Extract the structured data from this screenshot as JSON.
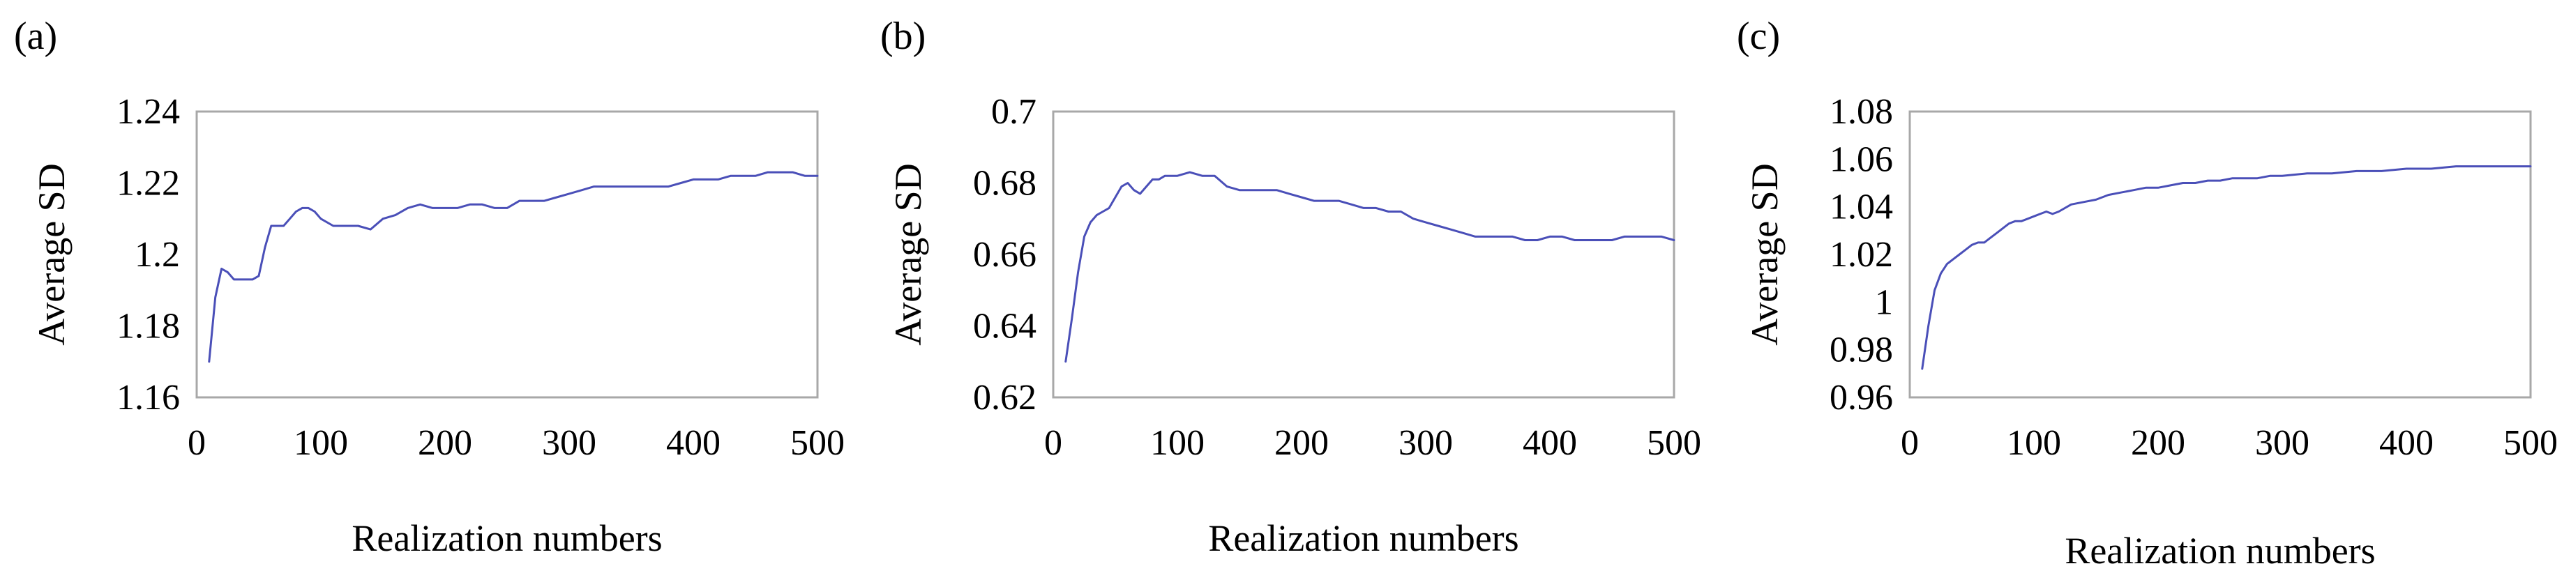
{
  "colors": {
    "line": "#4a4fb8",
    "axis": "#a8a8a8",
    "background": "#ffffff",
    "text": "#000000"
  },
  "chart_data": [
    {
      "panel_label": "(a)",
      "type": "line",
      "xlabel": "Realization numbers",
      "ylabel": "Average SD",
      "xlim": [
        0,
        500
      ],
      "ylim": [
        1.16,
        1.24
      ],
      "xticks": [
        "0",
        "100",
        "200",
        "300",
        "400",
        "500"
      ],
      "yticks": [
        "1.16",
        "1.18",
        "1.2",
        "1.22",
        "1.24"
      ],
      "grid": false,
      "legend": "none",
      "series": [
        {
          "x": [
            10,
            15,
            20,
            25,
            30,
            35,
            40,
            45,
            50,
            55,
            60,
            65,
            70,
            75,
            80,
            85,
            90,
            95,
            100,
            110,
            120,
            130,
            140,
            150,
            160,
            170,
            180,
            190,
            200,
            210,
            220,
            230,
            240,
            250,
            260,
            270,
            280,
            290,
            300,
            310,
            320,
            330,
            340,
            350,
            360,
            370,
            380,
            390,
            400,
            410,
            420,
            430,
            440,
            450,
            460,
            470,
            480,
            490,
            500
          ],
          "y": [
            1.17,
            1.188,
            1.196,
            1.195,
            1.193,
            1.193,
            1.193,
            1.193,
            1.194,
            1.202,
            1.208,
            1.208,
            1.208,
            1.21,
            1.212,
            1.213,
            1.213,
            1.212,
            1.21,
            1.208,
            1.208,
            1.208,
            1.207,
            1.21,
            1.211,
            1.213,
            1.214,
            1.213,
            1.213,
            1.213,
            1.214,
            1.214,
            1.213,
            1.213,
            1.215,
            1.215,
            1.215,
            1.216,
            1.217,
            1.218,
            1.219,
            1.219,
            1.219,
            1.219,
            1.219,
            1.219,
            1.219,
            1.22,
            1.221,
            1.221,
            1.221,
            1.222,
            1.222,
            1.222,
            1.223,
            1.223,
            1.223,
            1.222,
            1.222
          ]
        }
      ]
    },
    {
      "panel_label": "(b)",
      "type": "line",
      "xlabel": "Realization numbers",
      "ylabel": "Average SD",
      "xlim": [
        0,
        500
      ],
      "ylim": [
        0.62,
        0.7
      ],
      "xticks": [
        "0",
        "100",
        "200",
        "300",
        "400",
        "500"
      ],
      "yticks": [
        "0.62",
        "0.64",
        "0.66",
        "0.68",
        "0.7"
      ],
      "grid": false,
      "legend": "none",
      "series": [
        {
          "x": [
            10,
            15,
            20,
            25,
            30,
            35,
            40,
            45,
            50,
            55,
            60,
            65,
            70,
            75,
            80,
            85,
            90,
            100,
            110,
            120,
            130,
            140,
            150,
            160,
            170,
            180,
            190,
            200,
            210,
            220,
            230,
            240,
            250,
            260,
            270,
            280,
            290,
            300,
            310,
            320,
            330,
            340,
            350,
            360,
            370,
            380,
            390,
            400,
            410,
            420,
            430,
            440,
            450,
            460,
            470,
            480,
            490,
            500
          ],
          "y": [
            0.63,
            0.642,
            0.655,
            0.665,
            0.669,
            0.671,
            0.672,
            0.673,
            0.676,
            0.679,
            0.68,
            0.678,
            0.677,
            0.679,
            0.681,
            0.681,
            0.682,
            0.682,
            0.683,
            0.682,
            0.682,
            0.679,
            0.678,
            0.678,
            0.678,
            0.678,
            0.677,
            0.676,
            0.675,
            0.675,
            0.675,
            0.674,
            0.673,
            0.673,
            0.672,
            0.672,
            0.67,
            0.669,
            0.668,
            0.667,
            0.666,
            0.665,
            0.665,
            0.665,
            0.665,
            0.664,
            0.664,
            0.665,
            0.665,
            0.664,
            0.664,
            0.664,
            0.664,
            0.665,
            0.665,
            0.665,
            0.665,
            0.664
          ]
        }
      ]
    },
    {
      "panel_label": "(c)",
      "type": "line",
      "xlabel": "Realization numbers",
      "ylabel": "Average SD",
      "xlim": [
        0,
        500
      ],
      "ylim": [
        0.96,
        1.08
      ],
      "xticks": [
        "0",
        "100",
        "200",
        "300",
        "400",
        "500"
      ],
      "yticks": [
        "0.96",
        "0.98",
        "1",
        "1.02",
        "1.04",
        "1.06",
        "1.08"
      ],
      "grid": false,
      "legend": "none",
      "series": [
        {
          "x": [
            10,
            15,
            20,
            25,
            30,
            35,
            40,
            45,
            50,
            55,
            60,
            65,
            70,
            75,
            80,
            85,
            90,
            95,
            100,
            105,
            110,
            115,
            120,
            130,
            140,
            150,
            160,
            170,
            180,
            190,
            200,
            210,
            220,
            230,
            240,
            250,
            260,
            270,
            280,
            290,
            300,
            320,
            340,
            360,
            380,
            400,
            420,
            440,
            460,
            480,
            500
          ],
          "y": [
            0.972,
            0.99,
            1.005,
            1.012,
            1.016,
            1.018,
            1.02,
            1.022,
            1.024,
            1.025,
            1.025,
            1.027,
            1.029,
            1.031,
            1.033,
            1.034,
            1.034,
            1.035,
            1.036,
            1.037,
            1.038,
            1.037,
            1.038,
            1.041,
            1.042,
            1.043,
            1.045,
            1.046,
            1.047,
            1.048,
            1.048,
            1.049,
            1.05,
            1.05,
            1.051,
            1.051,
            1.052,
            1.052,
            1.052,
            1.053,
            1.053,
            1.054,
            1.054,
            1.055,
            1.055,
            1.056,
            1.056,
            1.057,
            1.057,
            1.057,
            1.057
          ]
        }
      ]
    }
  ]
}
